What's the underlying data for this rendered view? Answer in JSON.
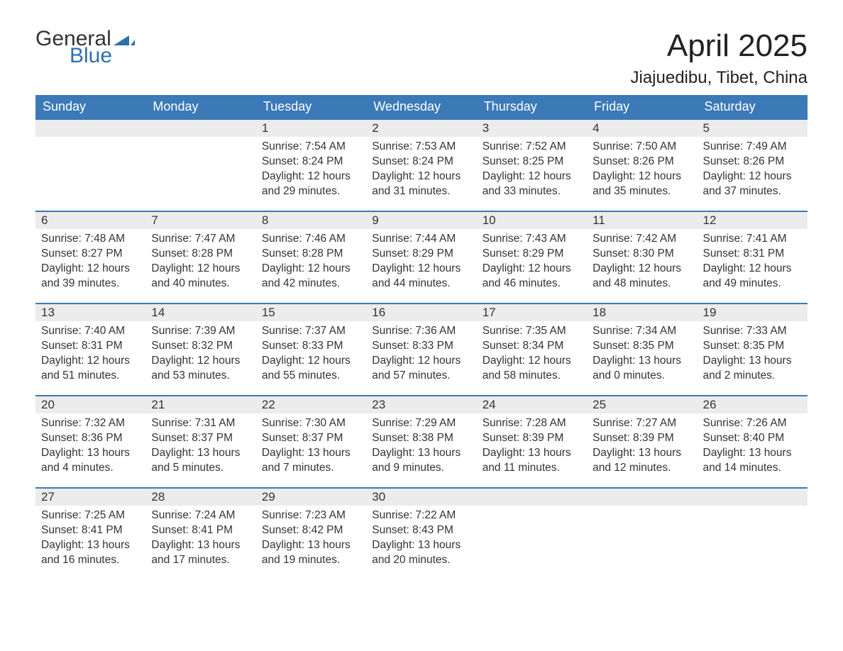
{
  "brand": {
    "word1": "General",
    "word2": "Blue",
    "flag_color": "#2f6fb0",
    "text_color_dark": "#333333"
  },
  "title": "April 2025",
  "location": "Jiajuedibu, Tibet, China",
  "colors": {
    "header_bg": "#3b79b7",
    "header_text": "#ffffff",
    "daynum_bg": "#ececec",
    "body_text": "#333333",
    "row_divider": "#3b79b7",
    "page_bg": "#ffffff"
  },
  "columns": [
    "Sunday",
    "Monday",
    "Tuesday",
    "Wednesday",
    "Thursday",
    "Friday",
    "Saturday"
  ],
  "weeks": [
    [
      null,
      null,
      {
        "n": "1",
        "sr": "7:54 AM",
        "ss": "8:24 PM",
        "dl": "12 hours and 29 minutes."
      },
      {
        "n": "2",
        "sr": "7:53 AM",
        "ss": "8:24 PM",
        "dl": "12 hours and 31 minutes."
      },
      {
        "n": "3",
        "sr": "7:52 AM",
        "ss": "8:25 PM",
        "dl": "12 hours and 33 minutes."
      },
      {
        "n": "4",
        "sr": "7:50 AM",
        "ss": "8:26 PM",
        "dl": "12 hours and 35 minutes."
      },
      {
        "n": "5",
        "sr": "7:49 AM",
        "ss": "8:26 PM",
        "dl": "12 hours and 37 minutes."
      }
    ],
    [
      {
        "n": "6",
        "sr": "7:48 AM",
        "ss": "8:27 PM",
        "dl": "12 hours and 39 minutes."
      },
      {
        "n": "7",
        "sr": "7:47 AM",
        "ss": "8:28 PM",
        "dl": "12 hours and 40 minutes."
      },
      {
        "n": "8",
        "sr": "7:46 AM",
        "ss": "8:28 PM",
        "dl": "12 hours and 42 minutes."
      },
      {
        "n": "9",
        "sr": "7:44 AM",
        "ss": "8:29 PM",
        "dl": "12 hours and 44 minutes."
      },
      {
        "n": "10",
        "sr": "7:43 AM",
        "ss": "8:29 PM",
        "dl": "12 hours and 46 minutes."
      },
      {
        "n": "11",
        "sr": "7:42 AM",
        "ss": "8:30 PM",
        "dl": "12 hours and 48 minutes."
      },
      {
        "n": "12",
        "sr": "7:41 AM",
        "ss": "8:31 PM",
        "dl": "12 hours and 49 minutes."
      }
    ],
    [
      {
        "n": "13",
        "sr": "7:40 AM",
        "ss": "8:31 PM",
        "dl": "12 hours and 51 minutes."
      },
      {
        "n": "14",
        "sr": "7:39 AM",
        "ss": "8:32 PM",
        "dl": "12 hours and 53 minutes."
      },
      {
        "n": "15",
        "sr": "7:37 AM",
        "ss": "8:33 PM",
        "dl": "12 hours and 55 minutes."
      },
      {
        "n": "16",
        "sr": "7:36 AM",
        "ss": "8:33 PM",
        "dl": "12 hours and 57 minutes."
      },
      {
        "n": "17",
        "sr": "7:35 AM",
        "ss": "8:34 PM",
        "dl": "12 hours and 58 minutes."
      },
      {
        "n": "18",
        "sr": "7:34 AM",
        "ss": "8:35 PM",
        "dl": "13 hours and 0 minutes."
      },
      {
        "n": "19",
        "sr": "7:33 AM",
        "ss": "8:35 PM",
        "dl": "13 hours and 2 minutes."
      }
    ],
    [
      {
        "n": "20",
        "sr": "7:32 AM",
        "ss": "8:36 PM",
        "dl": "13 hours and 4 minutes."
      },
      {
        "n": "21",
        "sr": "7:31 AM",
        "ss": "8:37 PM",
        "dl": "13 hours and 5 minutes."
      },
      {
        "n": "22",
        "sr": "7:30 AM",
        "ss": "8:37 PM",
        "dl": "13 hours and 7 minutes."
      },
      {
        "n": "23",
        "sr": "7:29 AM",
        "ss": "8:38 PM",
        "dl": "13 hours and 9 minutes."
      },
      {
        "n": "24",
        "sr": "7:28 AM",
        "ss": "8:39 PM",
        "dl": "13 hours and 11 minutes."
      },
      {
        "n": "25",
        "sr": "7:27 AM",
        "ss": "8:39 PM",
        "dl": "13 hours and 12 minutes."
      },
      {
        "n": "26",
        "sr": "7:26 AM",
        "ss": "8:40 PM",
        "dl": "13 hours and 14 minutes."
      }
    ],
    [
      {
        "n": "27",
        "sr": "7:25 AM",
        "ss": "8:41 PM",
        "dl": "13 hours and 16 minutes."
      },
      {
        "n": "28",
        "sr": "7:24 AM",
        "ss": "8:41 PM",
        "dl": "13 hours and 17 minutes."
      },
      {
        "n": "29",
        "sr": "7:23 AM",
        "ss": "8:42 PM",
        "dl": "13 hours and 19 minutes."
      },
      {
        "n": "30",
        "sr": "7:22 AM",
        "ss": "8:43 PM",
        "dl": "13 hours and 20 minutes."
      },
      null,
      null,
      null
    ]
  ],
  "labels": {
    "sunrise": "Sunrise: ",
    "sunset": "Sunset: ",
    "daylight": "Daylight: "
  }
}
